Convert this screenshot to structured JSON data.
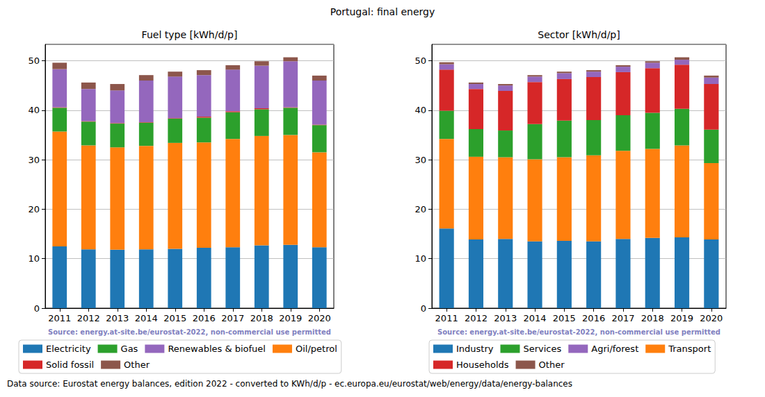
{
  "title": "Portugal: final energy",
  "footnote": "Data source: Eurostat energy balances, edition 2022 - converted to KWh/d/p - ec.europa.eu/eurostat/web/energy/data/energy-balances",
  "chart_data": [
    {
      "type": "bar",
      "title": "Fuel type [kWh/d/p]",
      "annotation": "Source: energy.at-site.be/eurostat-2022, non-commercial use permitted",
      "stacked": true,
      "grid": true,
      "legend": "bottom",
      "categories": [
        "2011",
        "2012",
        "2013",
        "2014",
        "2015",
        "2016",
        "2017",
        "2018",
        "2019",
        "2020"
      ],
      "ylim": [
        0,
        53.3
      ],
      "yticks": [
        0,
        10,
        20,
        30,
        40,
        50
      ],
      "series": [
        {
          "name": "Electricity",
          "color": "#1f77b4",
          "values": [
            12.5,
            11.9,
            11.8,
            11.9,
            12.0,
            12.2,
            12.3,
            12.7,
            12.8,
            12.3
          ]
        },
        {
          "name": "Oil/petrol",
          "color": "#ff7f0e",
          "values": [
            23.2,
            21.0,
            20.7,
            20.9,
            21.4,
            21.3,
            21.9,
            22.1,
            22.2,
            19.2
          ]
        },
        {
          "name": "Gas",
          "color": "#2ca02c",
          "values": [
            4.8,
            4.8,
            4.8,
            4.7,
            4.9,
            5.0,
            5.4,
            5.4,
            5.5,
            5.5
          ]
        },
        {
          "name": "Solid fossil",
          "color": "#d62728",
          "values": [
            0.1,
            0.1,
            0.1,
            0.1,
            0.1,
            0.2,
            0.2,
            0.2,
            0.1,
            0.1
          ]
        },
        {
          "name": "Renewables & biofuel",
          "color": "#9467bd",
          "values": [
            7.7,
            6.5,
            6.6,
            8.4,
            8.4,
            8.4,
            8.4,
            8.6,
            9.3,
            8.9
          ]
        },
        {
          "name": "Other",
          "color": "#8c564b",
          "values": [
            1.3,
            1.3,
            1.3,
            1.1,
            1.0,
            1.0,
            0.9,
            0.9,
            0.8,
            1.0
          ]
        }
      ]
    },
    {
      "type": "bar",
      "title": "Sector [kWh/d/p]",
      "annotation": "Source: energy.at-site.be/eurostat-2022, non-commercial use permitted",
      "stacked": true,
      "grid": true,
      "legend": "bottom",
      "categories": [
        "2011",
        "2012",
        "2013",
        "2014",
        "2015",
        "2016",
        "2017",
        "2018",
        "2019",
        "2020"
      ],
      "ylim": [
        0,
        53.3
      ],
      "yticks": [
        0,
        10,
        20,
        30,
        40,
        50
      ],
      "series": [
        {
          "name": "Industry",
          "color": "#1f77b4",
          "values": [
            16.1,
            13.9,
            14.0,
            13.5,
            13.6,
            13.5,
            14.0,
            14.2,
            14.3,
            13.9
          ]
        },
        {
          "name": "Transport",
          "color": "#ff7f0e",
          "values": [
            18.1,
            16.7,
            16.5,
            16.6,
            16.9,
            17.4,
            17.8,
            18.0,
            18.6,
            15.4
          ]
        },
        {
          "name": "Services",
          "color": "#2ca02c",
          "values": [
            5.7,
            5.6,
            5.4,
            7.1,
            7.4,
            7.1,
            7.2,
            7.3,
            7.4,
            6.8
          ]
        },
        {
          "name": "Households",
          "color": "#d62728",
          "values": [
            8.3,
            8.1,
            8.0,
            8.5,
            8.4,
            8.7,
            8.7,
            9.0,
            8.9,
            9.2
          ]
        },
        {
          "name": "Agri/forest",
          "color": "#9467bd",
          "values": [
            1.1,
            1.0,
            1.1,
            1.1,
            1.2,
            1.1,
            1.1,
            1.1,
            1.0,
            1.3
          ]
        },
        {
          "name": "Other",
          "color": "#8c564b",
          "values": [
            0.4,
            0.3,
            0.3,
            0.3,
            0.3,
            0.3,
            0.3,
            0.3,
            0.5,
            0.4
          ]
        }
      ]
    }
  ]
}
